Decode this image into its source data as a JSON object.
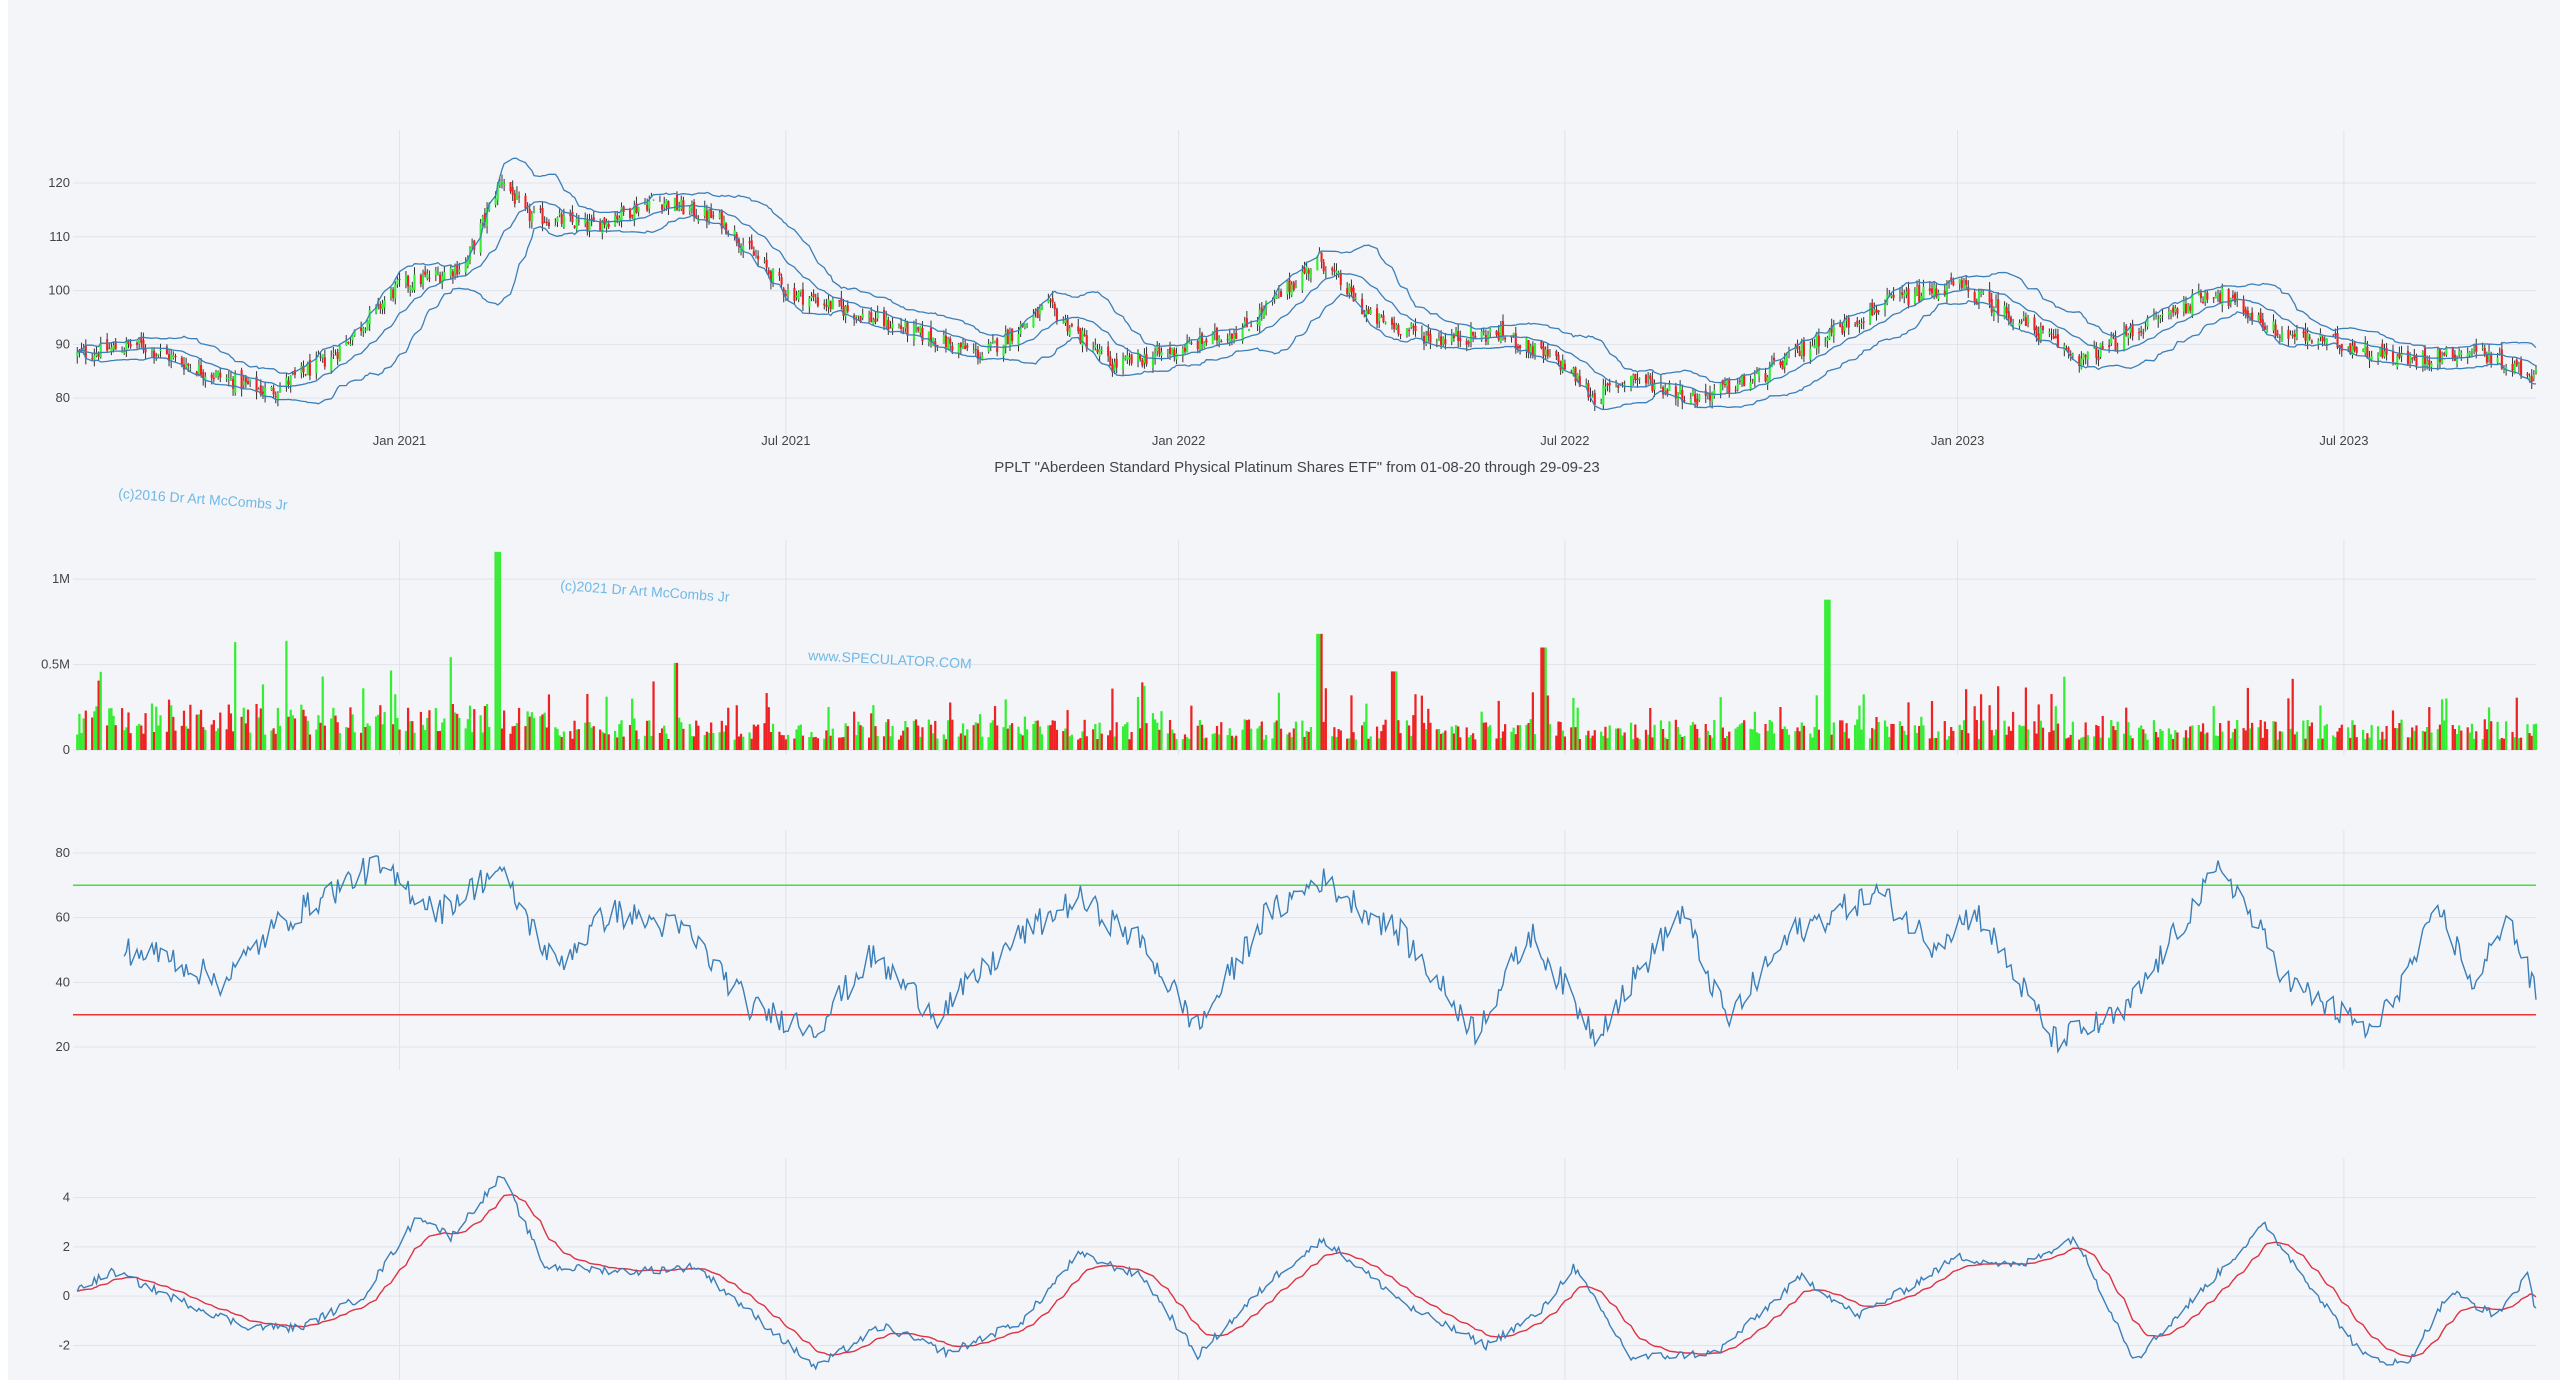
{
  "chart_data": [
    {
      "type": "candlestick",
      "panel": "price",
      "title": "PPLT \"Aberdeen Standard Physical Platinum Shares ETF\" from 01-08-20 through 29-09-23",
      "ylim": [
        75,
        128
      ],
      "yticks": [
        80,
        90,
        100,
        110,
        120
      ],
      "x_range": [
        "2020-08-01",
        "2023-09-29"
      ],
      "x_ticks": [
        {
          "date": "2021-01-01",
          "label": "Jan 2021"
        },
        {
          "date": "2021-07-01",
          "label": "Jul 2021"
        },
        {
          "date": "2022-01-01",
          "label": "Jan 2022"
        },
        {
          "date": "2022-07-01",
          "label": "Jul 2022"
        },
        {
          "date": "2023-01-01",
          "label": "Jan 2023"
        },
        {
          "date": "2023-07-01",
          "label": "Jul 2023"
        }
      ],
      "close_anchors": [
        [
          "2020-08-01",
          88
        ],
        [
          "2020-09-01",
          90
        ],
        [
          "2020-10-01",
          85
        ],
        [
          "2020-11-01",
          81
        ],
        [
          "2020-12-01",
          88
        ],
        [
          "2021-01-01",
          101
        ],
        [
          "2021-01-20",
          103
        ],
        [
          "2021-02-01",
          105
        ],
        [
          "2021-02-18",
          121
        ],
        [
          "2021-03-01",
          114
        ],
        [
          "2021-04-01",
          112
        ],
        [
          "2021-05-01",
          117
        ],
        [
          "2021-06-01",
          113
        ],
        [
          "2021-07-01",
          100
        ],
        [
          "2021-08-01",
          96
        ],
        [
          "2021-09-01",
          92
        ],
        [
          "2021-10-01",
          88
        ],
        [
          "2021-11-01",
          97
        ],
        [
          "2021-12-01",
          86
        ],
        [
          "2022-01-01",
          89
        ],
        [
          "2022-02-01",
          93
        ],
        [
          "2022-03-08",
          106
        ],
        [
          "2022-04-01",
          95
        ],
        [
          "2022-05-01",
          91
        ],
        [
          "2022-06-01",
          92
        ],
        [
          "2022-07-01",
          86
        ],
        [
          "2022-07-15",
          80
        ],
        [
          "2022-08-01",
          84
        ],
        [
          "2022-09-01",
          80
        ],
        [
          "2022-10-01",
          84
        ],
        [
          "2022-11-01",
          92
        ],
        [
          "2022-12-01",
          98
        ],
        [
          "2023-01-01",
          101
        ],
        [
          "2023-02-01",
          94
        ],
        [
          "2023-03-01",
          87
        ],
        [
          "2023-04-01",
          94
        ],
        [
          "2023-05-01",
          100
        ],
        [
          "2023-06-01",
          92
        ],
        [
          "2023-07-01",
          90
        ],
        [
          "2023-08-01",
          87
        ],
        [
          "2023-09-01",
          89
        ],
        [
          "2023-09-29",
          84
        ]
      ],
      "colors": {
        "up": "#33ee33",
        "down": "#ee2222",
        "bands": "#3b7fb8",
        "wick": "#333333"
      },
      "overlays": [
        "bollinger-upper",
        "bollinger-middle",
        "bollinger-lower"
      ]
    },
    {
      "type": "bar",
      "panel": "volume",
      "ylim": [
        0,
        1200000
      ],
      "yticks": [
        {
          "v": 0,
          "label": "0"
        },
        {
          "v": 500000,
          "label": "0.5M"
        },
        {
          "v": 1000000,
          "label": "1M"
        }
      ],
      "spikes": [
        [
          "2021-02-16",
          1160000
        ],
        [
          "2022-03-08",
          680000
        ],
        [
          "2022-06-21",
          600000
        ],
        [
          "2022-11-01",
          880000
        ],
        [
          "2021-05-10",
          510000
        ],
        [
          "2022-04-12",
          460000
        ]
      ],
      "colors": {
        "up": "#33ee33",
        "down": "#ee2222"
      }
    },
    {
      "type": "line",
      "panel": "rsi",
      "ylim": [
        16,
        84
      ],
      "yticks": [
        20,
        40,
        60,
        80
      ],
      "reference_lines": [
        {
          "value": 70,
          "color": "#44dd44"
        },
        {
          "value": 30,
          "color": "#ee3333"
        }
      ],
      "anchors": [
        [
          "2020-08-01",
          52
        ],
        [
          "2020-09-15",
          48
        ],
        [
          "2020-10-10",
          40
        ],
        [
          "2020-11-05",
          58
        ],
        [
          "2020-12-20",
          76
        ],
        [
          "2021-01-20",
          62
        ],
        [
          "2021-02-16",
          75
        ],
        [
          "2021-03-15",
          45
        ],
        [
          "2021-04-10",
          62
        ],
        [
          "2021-05-15",
          56
        ],
        [
          "2021-06-15",
          32
        ],
        [
          "2021-07-15",
          26
        ],
        [
          "2021-08-10",
          48
        ],
        [
          "2021-09-10",
          30
        ],
        [
          "2021-10-20",
          55
        ],
        [
          "2021-11-15",
          66
        ],
        [
          "2021-12-15",
          52
        ],
        [
          "2022-01-10",
          26
        ],
        [
          "2022-02-10",
          60
        ],
        [
          "2022-03-08",
          72
        ],
        [
          "2022-04-15",
          55
        ],
        [
          "2022-05-20",
          25
        ],
        [
          "2022-06-15",
          55
        ],
        [
          "2022-07-15",
          24
        ],
        [
          "2022-08-25",
          62
        ],
        [
          "2022-09-15",
          28
        ],
        [
          "2022-10-15",
          55
        ],
        [
          "2022-11-25",
          68
        ],
        [
          "2022-12-20",
          52
        ],
        [
          "2023-01-10",
          62
        ],
        [
          "2023-02-15",
          22
        ],
        [
          "2023-03-20",
          30
        ],
        [
          "2023-04-20",
          62
        ],
        [
          "2023-05-05",
          76
        ],
        [
          "2023-06-05",
          40
        ],
        [
          "2023-07-15",
          24
        ],
        [
          "2023-08-15",
          62
        ],
        [
          "2023-09-01",
          38
        ],
        [
          "2023-09-15",
          62
        ],
        [
          "2023-09-29",
          36
        ]
      ],
      "color": "#3b7fb8"
    },
    {
      "type": "line",
      "panel": "macd",
      "ylim": [
        -3.4,
        5.2
      ],
      "yticks": [
        -2,
        0,
        2,
        4
      ],
      "series": [
        {
          "key": "macd",
          "color": "#3b7fb8"
        },
        {
          "key": "signal",
          "color": "#dd3344"
        }
      ],
      "anchors": [
        [
          "2020-08-01",
          0.2
        ],
        [
          "2020-08-20",
          1.0
        ],
        [
          "2020-09-15",
          0.0
        ],
        [
          "2020-10-20",
          -1.2
        ],
        [
          "2020-11-15",
          -1.3
        ],
        [
          "2020-12-15",
          0.0
        ],
        [
          "2021-01-10",
          3.3
        ],
        [
          "2021-01-25",
          2.4
        ],
        [
          "2021-02-18",
          4.9
        ],
        [
          "2021-03-10",
          1.2
        ],
        [
          "2021-04-20",
          1.0
        ],
        [
          "2021-05-20",
          1.2
        ],
        [
          "2021-07-15",
          -2.9
        ],
        [
          "2021-08-15",
          -1.2
        ],
        [
          "2021-09-15",
          -2.3
        ],
        [
          "2021-10-20",
          -1.0
        ],
        [
          "2021-11-15",
          1.7
        ],
        [
          "2021-12-15",
          0.8
        ],
        [
          "2022-01-10",
          -2.4
        ],
        [
          "2022-02-15",
          0.8
        ],
        [
          "2022-03-10",
          2.3
        ],
        [
          "2022-04-20",
          -0.5
        ],
        [
          "2022-05-25",
          -2.0
        ],
        [
          "2022-06-20",
          -0.6
        ],
        [
          "2022-07-05",
          1.2
        ],
        [
          "2022-08-01",
          -2.5
        ],
        [
          "2022-09-10",
          -2.3
        ],
        [
          "2022-10-20",
          0.8
        ],
        [
          "2022-11-15",
          -0.8
        ],
        [
          "2022-12-10",
          0.4
        ],
        [
          "2023-01-01",
          1.6
        ],
        [
          "2023-01-30",
          1.2
        ],
        [
          "2023-02-25",
          2.4
        ],
        [
          "2023-03-25",
          -2.6
        ],
        [
          "2023-04-25",
          0.2
        ],
        [
          "2023-05-25",
          2.9
        ],
        [
          "2023-07-10",
          -2.4
        ],
        [
          "2023-07-30",
          -2.8
        ],
        [
          "2023-08-20",
          0.2
        ],
        [
          "2023-09-10",
          -0.8
        ],
        [
          "2023-09-25",
          0.8
        ],
        [
          "2023-09-29",
          -0.6
        ]
      ]
    }
  ],
  "watermarks": {
    "wm1": "(c)2016 Dr Art McCombs Jr",
    "wm2": "(c)2021 Dr Art McCombs Jr",
    "wm3": "www.SPECULATOR.COM"
  }
}
